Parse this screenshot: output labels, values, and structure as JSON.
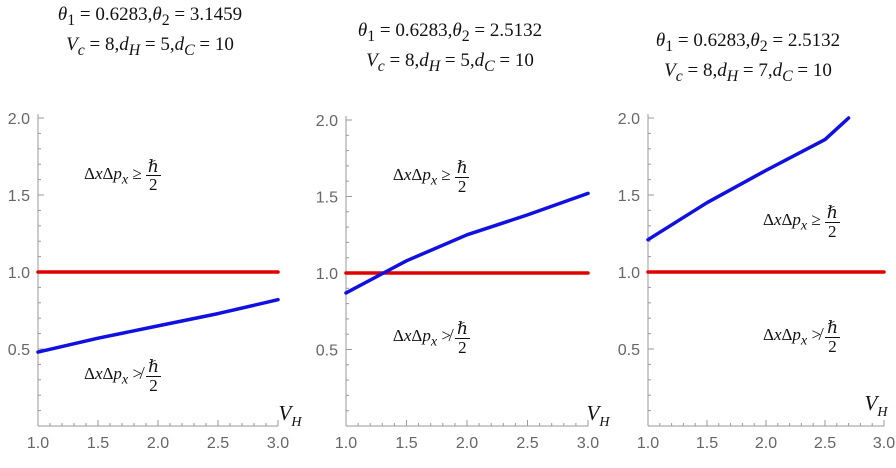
{
  "chart_data": [
    {
      "type": "line",
      "title_line1": "θ₁ = 0.6283, θ₂ = 3.1459",
      "title_line2": "V_c = 8, d_H = 5, d_C = 10",
      "title_parts": {
        "theta1": "0.6283",
        "theta2": "3.1459",
        "Vc": "8",
        "dH": "5",
        "dC": "10"
      },
      "xlabel": "V_H",
      "xlim": [
        1.0,
        3.0
      ],
      "ylim": [
        0.0,
        2.0
      ],
      "xticks": [
        "1.0",
        "1.5",
        "2.0",
        "2.5",
        "3.0"
      ],
      "yticks": [
        "0.5",
        "1.0",
        "1.5",
        "2.0"
      ],
      "series": [
        {
          "color": "#e00000",
          "x": [
            1.0,
            3.0
          ],
          "y": [
            1.0,
            1.0
          ]
        },
        {
          "color": "#1010e0",
          "x": [
            1.0,
            1.5,
            2.0,
            2.5,
            3.0
          ],
          "y": [
            0.48,
            0.57,
            0.65,
            0.73,
            0.82
          ]
        }
      ],
      "annotations": [
        {
          "text": "ΔxΔpₓ ≥ ℏ/2",
          "relation": "≥",
          "x": 1.9,
          "y": 1.6
        },
        {
          "text": "ΔxΔpₓ ≯ ℏ/2",
          "relation": "≯",
          "x": 1.9,
          "y": 0.3
        }
      ]
    },
    {
      "type": "line",
      "title_line1": "θ₁ = 0.6283, θ₂ = 2.5132",
      "title_line2": "V_c = 8, d_H = 5, d_C = 10",
      "title_parts": {
        "theta1": "0.6283",
        "theta2": "2.5132",
        "Vc": "8",
        "dH": "5",
        "dC": "10"
      },
      "xlabel": "V_H",
      "xlim": [
        1.0,
        3.0
      ],
      "ylim": [
        0.0,
        2.0
      ],
      "xticks": [
        "1.0",
        "1.5",
        "2.0",
        "2.5",
        "3.0"
      ],
      "yticks": [
        "0.5",
        "1.0",
        "1.5",
        "2.0"
      ],
      "series": [
        {
          "color": "#e00000",
          "x": [
            1.0,
            3.0
          ],
          "y": [
            1.0,
            1.0
          ]
        },
        {
          "color": "#1010e0",
          "x": [
            1.0,
            1.5,
            2.0,
            2.5,
            3.0
          ],
          "y": [
            0.87,
            1.08,
            1.25,
            1.38,
            1.52
          ]
        }
      ],
      "annotations": [
        {
          "text": "ΔxΔpₓ ≥ ℏ/2",
          "relation": "≥",
          "x": 1.9,
          "y": 1.6
        },
        {
          "text": "ΔxΔpₓ ≯ ℏ/2",
          "relation": "≯",
          "x": 1.9,
          "y": 0.55
        }
      ]
    },
    {
      "type": "line",
      "title_line1": "θ₁ = 0.6283, θ₂ = 2.5132",
      "title_line2": "V_c = 8, d_H = 7, d_C = 10",
      "title_parts": {
        "theta1": "0.6283",
        "theta2": "2.5132",
        "Vc": "8",
        "dH": "7",
        "dC": "10"
      },
      "xlabel": "V_H",
      "xlim": [
        1.0,
        3.0
      ],
      "ylim": [
        0.0,
        2.0
      ],
      "xticks": [
        "1.0",
        "1.5",
        "2.0",
        "2.5",
        "3.0"
      ],
      "yticks": [
        "0.5",
        "1.0",
        "1.5",
        "2.0"
      ],
      "series": [
        {
          "color": "#e00000",
          "x": [
            1.0,
            3.0
          ],
          "y": [
            1.0,
            1.0
          ]
        },
        {
          "color": "#1010e0",
          "x": [
            1.0,
            1.5,
            2.0,
            2.5,
            2.7
          ],
          "y": [
            1.21,
            1.45,
            1.66,
            1.86,
            2.0
          ]
        }
      ],
      "annotations": [
        {
          "text": "ΔxΔpₓ ≥ ℏ/2",
          "relation": "≥",
          "x": 2.5,
          "y": 1.3
        },
        {
          "text": "ΔxΔpₓ ≯ ℏ/2",
          "relation": "≯",
          "x": 2.5,
          "y": 0.55
        }
      ]
    }
  ]
}
